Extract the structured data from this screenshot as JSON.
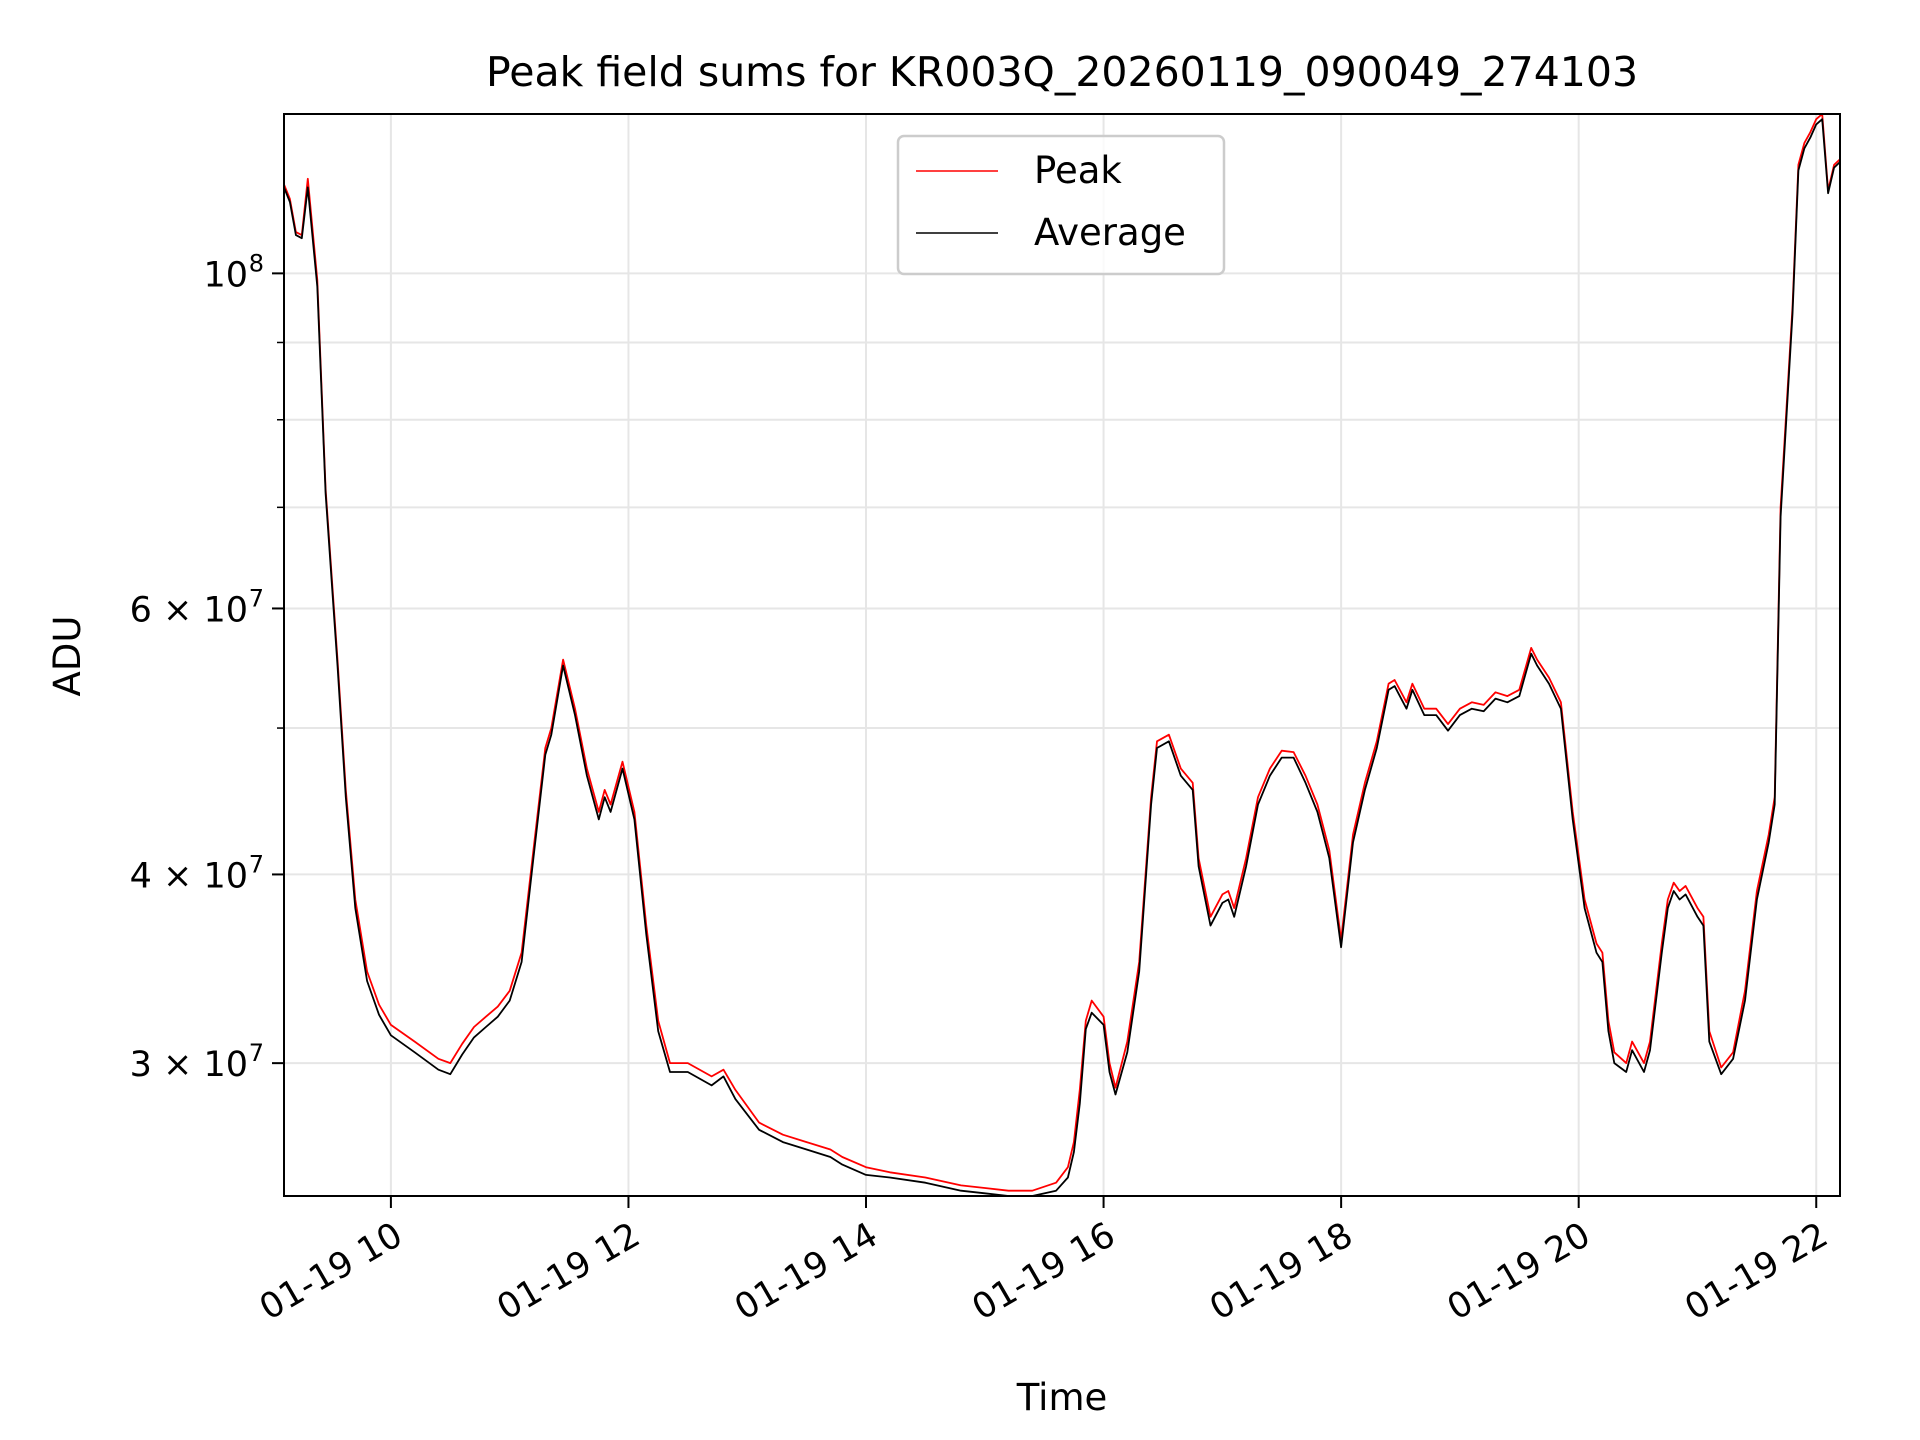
{
  "chart_data": {
    "type": "line",
    "title": "Peak field sums for KR003Q_20260119_090049_274103",
    "xlabel": "Time",
    "ylabel": "ADU",
    "yscale": "log",
    "xlim": [
      9.1,
      22.2
    ],
    "ylim": [
      24500000,
      127500000
    ],
    "grid": true,
    "legend_position": "top-center",
    "x_ticks": [
      {
        "value": 10,
        "label": "01-19 10"
      },
      {
        "value": 12,
        "label": "01-19 12"
      },
      {
        "value": 14,
        "label": "01-19 14"
      },
      {
        "value": 16,
        "label": "01-19 16"
      },
      {
        "value": 18,
        "label": "01-19 18"
      },
      {
        "value": 20,
        "label": "01-19 20"
      },
      {
        "value": 22,
        "label": "01-19 22"
      }
    ],
    "y_ticks": [
      {
        "value": 30000000,
        "mantissa": "3",
        "exp": "7"
      },
      {
        "value": 40000000,
        "mantissa": "4",
        "exp": "7"
      },
      {
        "value": 60000000,
        "mantissa": "6",
        "exp": "7"
      },
      {
        "value": 100000000,
        "mantissa": "",
        "exp": "8"
      }
    ],
    "y_minor_ticks": [
      50000000,
      70000000,
      80000000,
      90000000
    ],
    "series": [
      {
        "name": "Peak",
        "color": "#ff0000",
        "x": [
          9.1,
          9.15,
          9.2,
          9.25,
          9.3,
          9.38,
          9.45,
          9.55,
          9.62,
          9.7,
          9.8,
          9.9,
          10.0,
          10.2,
          10.4,
          10.5,
          10.6,
          10.7,
          10.8,
          10.9,
          11.0,
          11.1,
          11.2,
          11.3,
          11.35,
          11.45,
          11.55,
          11.65,
          11.75,
          11.8,
          11.85,
          11.95,
          12.05,
          12.15,
          12.25,
          12.35,
          12.5,
          12.7,
          12.8,
          12.9,
          13.1,
          13.3,
          13.5,
          13.7,
          13.8,
          14.0,
          14.2,
          14.5,
          14.8,
          15.0,
          15.2,
          15.4,
          15.6,
          15.7,
          15.75,
          15.8,
          15.85,
          15.9,
          16.0,
          16.05,
          16.1,
          16.2,
          16.3,
          16.4,
          16.45,
          16.55,
          16.65,
          16.75,
          16.8,
          16.9,
          17.0,
          17.05,
          17.1,
          17.2,
          17.3,
          17.4,
          17.5,
          17.6,
          17.7,
          17.8,
          17.85,
          17.9,
          18.0,
          18.1,
          18.2,
          18.3,
          18.4,
          18.45,
          18.55,
          18.6,
          18.7,
          18.8,
          18.9,
          19.0,
          19.1,
          19.2,
          19.3,
          19.4,
          19.5,
          19.6,
          19.65,
          19.75,
          19.85,
          19.95,
          20.05,
          20.15,
          20.2,
          20.25,
          20.3,
          20.4,
          20.45,
          20.55,
          20.6,
          20.7,
          20.75,
          20.8,
          20.85,
          20.9,
          21.0,
          21.05,
          21.1,
          21.2,
          21.3,
          21.4,
          21.5,
          21.6,
          21.65,
          21.7,
          21.8,
          21.85,
          21.9,
          21.95,
          22.0,
          22.05,
          22.1,
          22.15,
          22.2
        ],
        "y": [
          114500000,
          112000000,
          106500000,
          106000000,
          115500000,
          99000000,
          72000000,
          55500000,
          45500000,
          38500000,
          34500000,
          32800000,
          31800000,
          31000000,
          30200000,
          30000000,
          30900000,
          31700000,
          32200000,
          32700000,
          33500000,
          35500000,
          41500000,
          48500000,
          50000000,
          55500000,
          51500000,
          47000000,
          44000000,
          45500000,
          44500000,
          47500000,
          44000000,
          37000000,
          32000000,
          30000000,
          30000000,
          29400000,
          29700000,
          28800000,
          27400000,
          26900000,
          26600000,
          26300000,
          26000000,
          25600000,
          25400000,
          25200000,
          24900000,
          24800000,
          24700000,
          24700000,
          25000000,
          25600000,
          26600000,
          28800000,
          32000000,
          33000000,
          32200000,
          30000000,
          28900000,
          31000000,
          35000000,
          45000000,
          49000000,
          49500000,
          47000000,
          46000000,
          41000000,
          37500000,
          38800000,
          39000000,
          38000000,
          41000000,
          45000000,
          47000000,
          48300000,
          48200000,
          46500000,
          44500000,
          43000000,
          41500000,
          36200000,
          42500000,
          46000000,
          49000000,
          53500000,
          53800000,
          52000000,
          53500000,
          51500000,
          51500000,
          50300000,
          51500000,
          52000000,
          51800000,
          52800000,
          52500000,
          53000000,
          56500000,
          55500000,
          54000000,
          52000000,
          44000000,
          38500000,
          36000000,
          35500000,
          32000000,
          30500000,
          30000000,
          31000000,
          30000000,
          31000000,
          36000000,
          38500000,
          39500000,
          39000000,
          39300000,
          38000000,
          37500000,
          31500000,
          29800000,
          30500000,
          33500000,
          39000000,
          42500000,
          45000000,
          70000000,
          95000000,
          118000000,
          122000000,
          124000000,
          126500000,
          127500000,
          113500000,
          118000000,
          119000000
        ]
      },
      {
        "name": "Average",
        "color": "#000000",
        "x": [
          9.1,
          9.15,
          9.2,
          9.25,
          9.3,
          9.38,
          9.45,
          9.55,
          9.62,
          9.7,
          9.8,
          9.9,
          10.0,
          10.2,
          10.4,
          10.5,
          10.6,
          10.7,
          10.8,
          10.9,
          11.0,
          11.1,
          11.2,
          11.3,
          11.35,
          11.45,
          11.55,
          11.65,
          11.75,
          11.8,
          11.85,
          11.95,
          12.05,
          12.15,
          12.25,
          12.35,
          12.5,
          12.7,
          12.8,
          12.9,
          13.1,
          13.3,
          13.5,
          13.7,
          13.8,
          14.0,
          14.2,
          14.5,
          14.8,
          15.0,
          15.2,
          15.4,
          15.6,
          15.7,
          15.75,
          15.8,
          15.85,
          15.9,
          16.0,
          16.05,
          16.1,
          16.2,
          16.3,
          16.4,
          16.45,
          16.55,
          16.65,
          16.75,
          16.8,
          16.9,
          17.0,
          17.05,
          17.1,
          17.2,
          17.3,
          17.4,
          17.5,
          17.6,
          17.7,
          17.8,
          17.85,
          17.9,
          18.0,
          18.1,
          18.2,
          18.3,
          18.4,
          18.45,
          18.55,
          18.6,
          18.7,
          18.8,
          18.9,
          19.0,
          19.1,
          19.2,
          19.3,
          19.4,
          19.5,
          19.6,
          19.65,
          19.75,
          19.85,
          19.95,
          20.05,
          20.15,
          20.2,
          20.25,
          20.3,
          20.4,
          20.45,
          20.55,
          20.6,
          20.7,
          20.75,
          20.8,
          20.85,
          20.9,
          21.0,
          21.05,
          21.1,
          21.2,
          21.3,
          21.4,
          21.5,
          21.6,
          21.65,
          21.7,
          21.8,
          21.85,
          21.9,
          21.95,
          22.0,
          22.05,
          22.1,
          22.15,
          22.2
        ],
        "y": [
          114000000,
          111500000,
          106000000,
          105500000,
          114000000,
          98000000,
          71500000,
          55000000,
          45000000,
          38000000,
          34000000,
          32300000,
          31300000,
          30500000,
          29700000,
          29500000,
          30400000,
          31200000,
          31700000,
          32200000,
          33000000,
          35000000,
          41000000,
          48000000,
          49500000,
          55000000,
          51000000,
          46500000,
          43500000,
          45000000,
          44000000,
          47000000,
          43500000,
          36500000,
          31500000,
          29600000,
          29600000,
          29000000,
          29400000,
          28400000,
          27100000,
          26600000,
          26300000,
          26000000,
          25700000,
          25300000,
          25200000,
          25000000,
          24700000,
          24600000,
          24500000,
          24500000,
          24700000,
          25200000,
          26200000,
          28200000,
          31600000,
          32400000,
          31800000,
          29600000,
          28600000,
          30500000,
          34500000,
          44500000,
          48500000,
          49000000,
          46500000,
          45500000,
          40500000,
          37000000,
          38300000,
          38500000,
          37500000,
          40500000,
          44500000,
          46500000,
          47800000,
          47800000,
          46000000,
          44000000,
          42500000,
          41000000,
          35800000,
          42000000,
          45500000,
          48500000,
          53000000,
          53300000,
          51500000,
          53000000,
          51000000,
          51000000,
          49800000,
          51000000,
          51500000,
          51300000,
          52300000,
          52000000,
          52500000,
          56000000,
          55000000,
          53500000,
          51500000,
          43500000,
          38000000,
          35500000,
          35000000,
          31500000,
          30000000,
          29600000,
          30600000,
          29600000,
          30600000,
          35500000,
          38000000,
          39000000,
          38500000,
          38800000,
          37500000,
          37000000,
          31000000,
          29500000,
          30200000,
          33000000,
          38500000,
          42000000,
          44500000,
          69000000,
          94000000,
          117000000,
          121000000,
          123000000,
          125500000,
          126500000,
          113000000,
          117500000,
          118500000
        ]
      }
    ]
  }
}
